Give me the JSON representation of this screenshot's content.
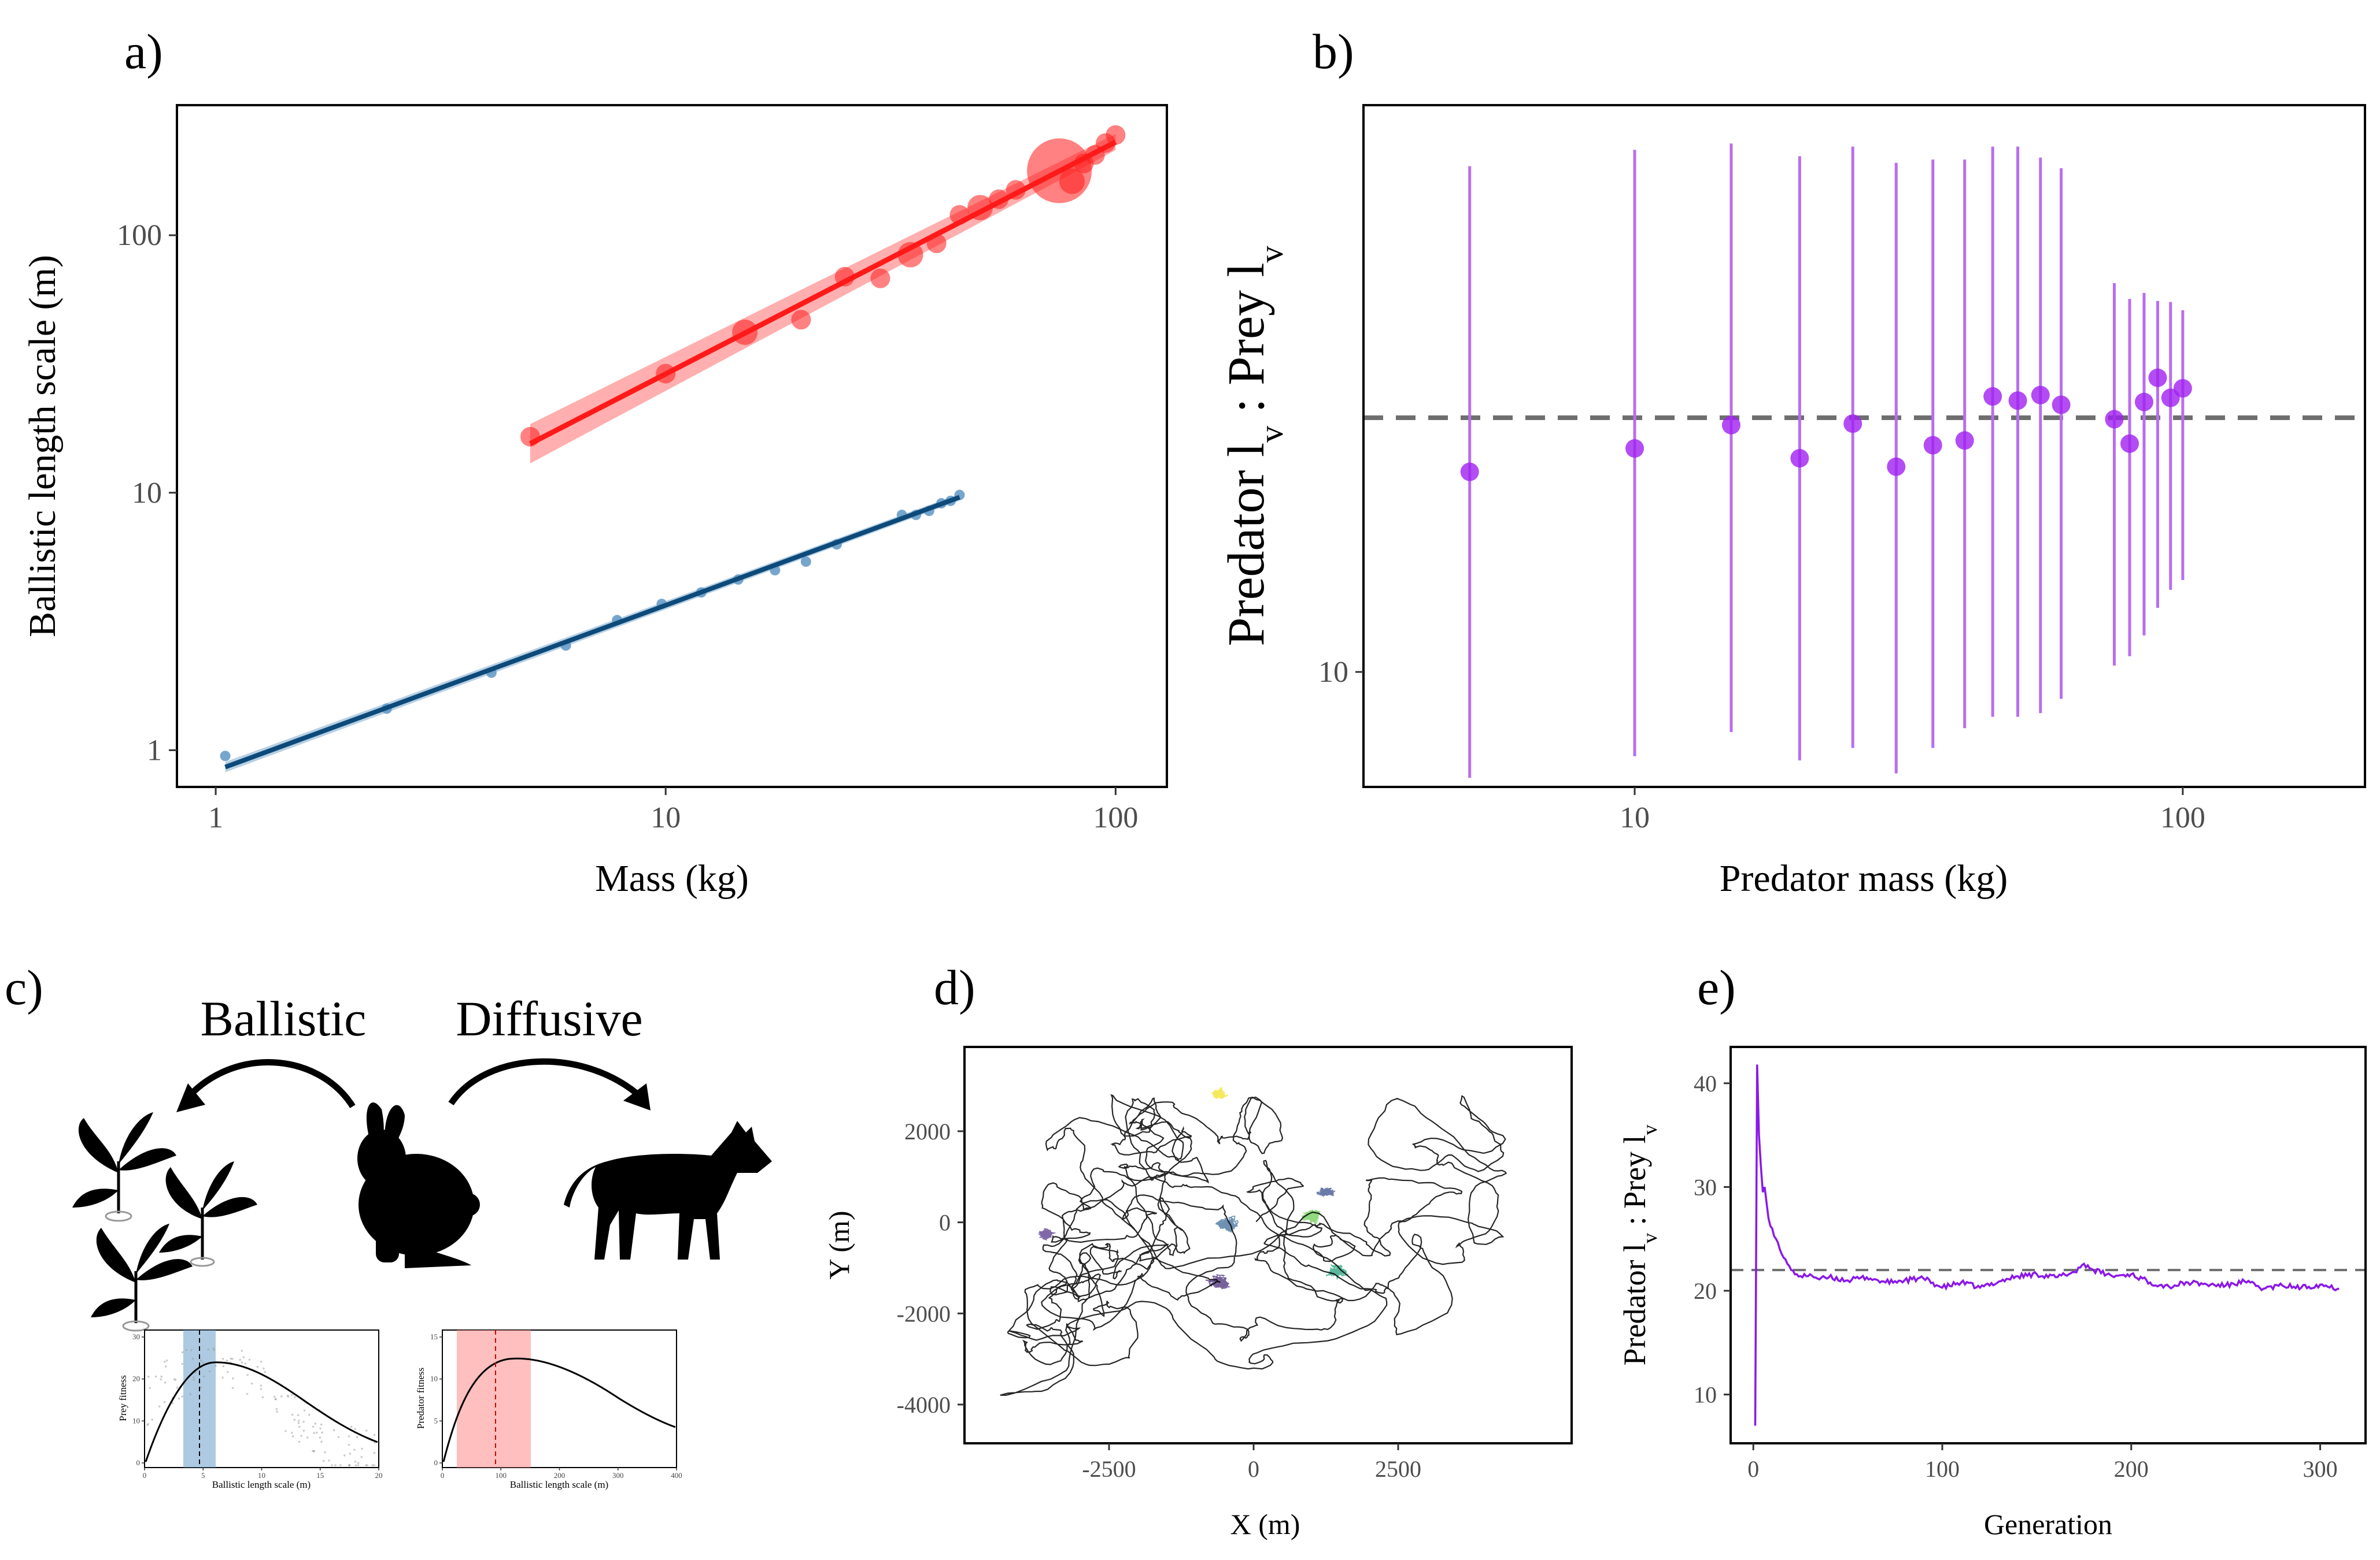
{
  "panels": {
    "a": "a)",
    "b": "b)",
    "c": "c)",
    "d": "d)",
    "e": "e)"
  },
  "colors": {
    "predator": "#ff1a1a",
    "prey_points": "#5f97c4",
    "prey_line": "#0d4a7a",
    "ratio_points": "#a020f0",
    "ratio_bars": "#b86ef0",
    "reference_line": "#6e6e6e",
    "fitness_band_prey": "#6a9fcb",
    "fitness_band_predator": "#ff8a8a"
  },
  "chart_data": [
    {
      "id": "a",
      "type": "scatter",
      "xscale": "log",
      "yscale": "log",
      "xlabel": "Mass (kg)",
      "ylabel": "Ballistic length scale (m)",
      "xticks": [
        1,
        10,
        100
      ],
      "xtick_labels": [
        "1",
        "10",
        "100"
      ],
      "yticks": [
        1,
        10,
        100
      ],
      "ytick_labels": [
        "1",
        "10",
        "100"
      ],
      "xlim": [
        0.82,
        130
      ],
      "ylim": [
        0.72,
        320
      ],
      "series": [
        {
          "role": "predator",
          "x": [
            5,
            10,
            15,
            20,
            25,
            30,
            35,
            40,
            45,
            50,
            55,
            60,
            75,
            80,
            85,
            90,
            95,
            100
          ],
          "y": [
            16.5,
            29,
            42,
            47,
            69,
            68,
            84,
            93,
            120,
            128,
            138,
            150,
            178,
            162,
            190,
            205,
            228,
            245
          ],
          "size": [
            2,
            2,
            3,
            2,
            2,
            2,
            3,
            2,
            2,
            3,
            2,
            2,
            10,
            3,
            2,
            2,
            2,
            2
          ],
          "fit": {
            "x": [
              5,
              100
            ],
            "y": [
              15.5,
              230
            ]
          }
        },
        {
          "role": "prey",
          "x": [
            1.05,
            2.4,
            4.1,
            6,
            7.8,
            9.8,
            12,
            14.5,
            17.5,
            20.5,
            24,
            33.5,
            36,
            38.5,
            41,
            43,
            45
          ],
          "y": [
            0.95,
            1.45,
            2.0,
            2.55,
            3.2,
            3.7,
            4.1,
            4.6,
            5.0,
            5.4,
            6.3,
            8.2,
            8.2,
            8.5,
            9.1,
            9.3,
            9.8
          ],
          "fit": {
            "x": [
              1.05,
              45
            ],
            "y": [
              0.86,
              9.6
            ]
          }
        }
      ]
    },
    {
      "id": "b",
      "type": "scatter",
      "xscale": "log",
      "yscale": "log",
      "xlabel": "Predator mass (kg)",
      "ylabel": "Predator lv : Prey lv",
      "xticks": [
        10,
        100
      ],
      "xtick_labels": [
        "10",
        "100"
      ],
      "yticks": [
        10
      ],
      "ytick_labels": [
        "10"
      ],
      "xlim": [
        3.2,
        215
      ],
      "ylim": [
        7.0,
        58
      ],
      "reference_y": 22,
      "series": [
        {
          "x": [
            5,
            10,
            15,
            20,
            25,
            30,
            35,
            40,
            45,
            50,
            55,
            60,
            75,
            80,
            85,
            90,
            95,
            100
          ],
          "y": [
            18.6,
            20.0,
            21.5,
            19.4,
            21.6,
            18.9,
            20.2,
            20.5,
            23.5,
            23.2,
            23.6,
            22.9,
            21.9,
            20.3,
            23.1,
            24.9,
            23.4,
            24.1
          ],
          "lower": [
            7.2,
            7.7,
            8.3,
            7.6,
            7.9,
            7.3,
            7.9,
            8.4,
            8.7,
            8.7,
            8.8,
            9.2,
            10.2,
            10.5,
            11.2,
            12.2,
            12.9,
            13.3
          ],
          "upper": [
            48,
            50.5,
            51.5,
            49.5,
            51,
            48.5,
            49,
            49,
            51,
            51,
            49.3,
            47.7,
            33.4,
            31.8,
            32.4,
            31.6,
            31.5,
            30.7
          ]
        }
      ]
    },
    {
      "id": "d",
      "type": "line",
      "xlabel": "X (m)",
      "ylabel": "Y (m)",
      "xticks": [
        -2500,
        0,
        2500
      ],
      "xtick_labels": [
        "-2500",
        "0",
        "2500"
      ],
      "yticks": [
        2000,
        0,
        -2000,
        -4000
      ],
      "ytick_labels": [
        "2000",
        "0",
        "-2000",
        "-4000"
      ],
      "xlim": [
        -5000,
        5500
      ],
      "ylim": [
        -4850,
        3850
      ],
      "patches": [
        {
          "name": "",
          "color": "#f2e12a",
          "center": [
            -600,
            2800
          ],
          "spread": [
            260,
            240
          ]
        },
        {
          "name": "",
          "color": "#55368a",
          "center": [
            -3600,
            -250
          ],
          "spread": [
            300,
            230
          ]
        },
        {
          "name": "",
          "color": "#3e6c97",
          "center": [
            -450,
            -50
          ],
          "spread": [
            380,
            380
          ]
        },
        {
          "name": "",
          "color": "#4a2c7a",
          "center": [
            -600,
            -1320
          ],
          "spread": [
            420,
            260
          ]
        },
        {
          "name": "",
          "color": "#6dcc57",
          "center": [
            1000,
            150
          ],
          "spread": [
            380,
            330
          ]
        },
        {
          "name": "",
          "color": "#22a07a",
          "center": [
            1450,
            -1050
          ],
          "spread": [
            380,
            300
          ]
        },
        {
          "name": "",
          "color": "#3a4f8a",
          "center": [
            1250,
            650
          ],
          "spread": [
            280,
            220
          ]
        }
      ]
    },
    {
      "id": "e",
      "type": "line",
      "xlabel": "Generation",
      "ylabel": "Predator lv : Prey lv",
      "xticks": [
        0,
        100,
        200,
        300
      ],
      "xtick_labels": [
        "0",
        "100",
        "200",
        "300"
      ],
      "yticks": [
        10,
        20,
        30,
        40
      ],
      "ytick_labels": [
        "10",
        "20",
        "30",
        "40"
      ],
      "xlim": [
        -12,
        324
      ],
      "ylim": [
        5.3,
        43.5
      ],
      "reference_y": 22,
      "series": [
        {
          "x": [
            1,
            2,
            3,
            4,
            5,
            6,
            7,
            8,
            10,
            12,
            14,
            16,
            18,
            20,
            23,
            26,
            30,
            35,
            40,
            50,
            60,
            70,
            80,
            90,
            100,
            110,
            120,
            130,
            140,
            150,
            160,
            170,
            175,
            180,
            190,
            200,
            210,
            220,
            230,
            240,
            250,
            260,
            270,
            280,
            290,
            300,
            310
          ],
          "y": [
            7,
            41.8,
            35,
            32,
            29.5,
            30,
            28.5,
            27,
            26,
            25,
            24,
            23.2,
            22.6,
            22,
            21.6,
            21.3,
            21.6,
            21.1,
            21.3,
            21.0,
            21.3,
            20.8,
            21.0,
            21.2,
            20.3,
            20.8,
            20.3,
            20.9,
            21.4,
            21.6,
            21.3,
            21.8,
            22.6,
            22.0,
            21.4,
            21.6,
            20.8,
            20.4,
            20.8,
            20.6,
            20.5,
            20.9,
            20.2,
            20.5,
            20.3,
            20.6,
            20.2
          ]
        }
      ]
    }
  ],
  "panel_c": {
    "ballistic_label": "Ballistic",
    "diffusive_label": "Diffusive",
    "prey_fitness_ylabel": "Prey fitness",
    "predator_fitness_ylabel": "Predator fitness",
    "inset_xlabel": "Ballistic length scale (m)",
    "inset_prey": {
      "xticks": [
        "0",
        "5",
        "10",
        "15",
        "20"
      ],
      "yticks": [
        "0",
        "10",
        "20",
        "30"
      ],
      "optimum": 4.5
    },
    "inset_predator": {
      "xticks": [
        "0",
        "100",
        "200",
        "300",
        "400"
      ],
      "yticks": [
        "0",
        "5",
        "10",
        "15"
      ],
      "optimum": 100
    }
  }
}
